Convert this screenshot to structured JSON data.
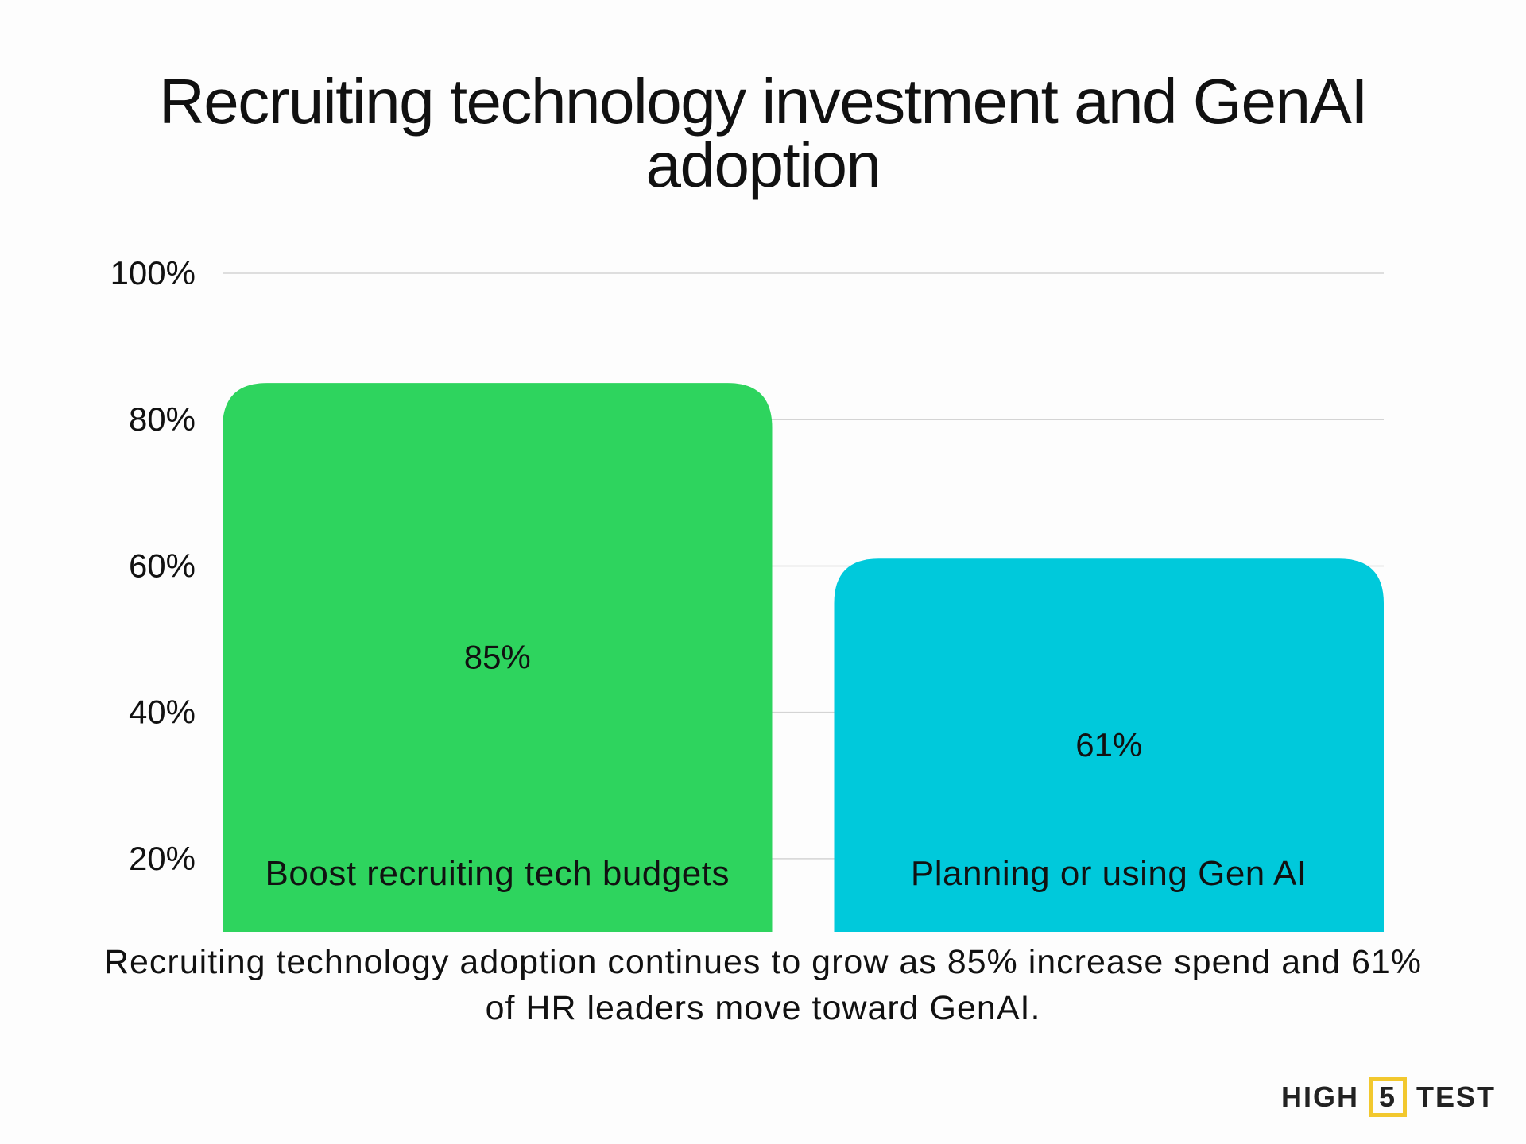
{
  "chart_data": {
    "type": "bar",
    "title": "Recruiting technology investment and GenAI adoption",
    "title_lines": [
      "Recruiting technology investment and GenAI",
      "adoption"
    ],
    "categories": [
      "Boost recruiting tech budgets",
      "Planning or using Gen AI"
    ],
    "values": [
      85,
      61
    ],
    "data_labels": [
      "85%",
      "61%"
    ],
    "colors": [
      "#2ed45e",
      "#00c9db"
    ],
    "yticks": [
      20,
      40,
      60,
      80,
      100
    ],
    "ytick_labels": [
      "20%",
      "40%",
      "60%",
      "80%",
      "100%"
    ],
    "ylim": [
      10,
      100
    ],
    "grid": true,
    "xlabel": "",
    "ylabel": ""
  },
  "caption": "Recruiting technology adoption continues to grow as 85% increase spend and 61% of HR leaders move toward GenAI.",
  "logo": {
    "left": "HIGH",
    "mid": "5",
    "right": "TEST",
    "accent": "#f2c82e"
  }
}
